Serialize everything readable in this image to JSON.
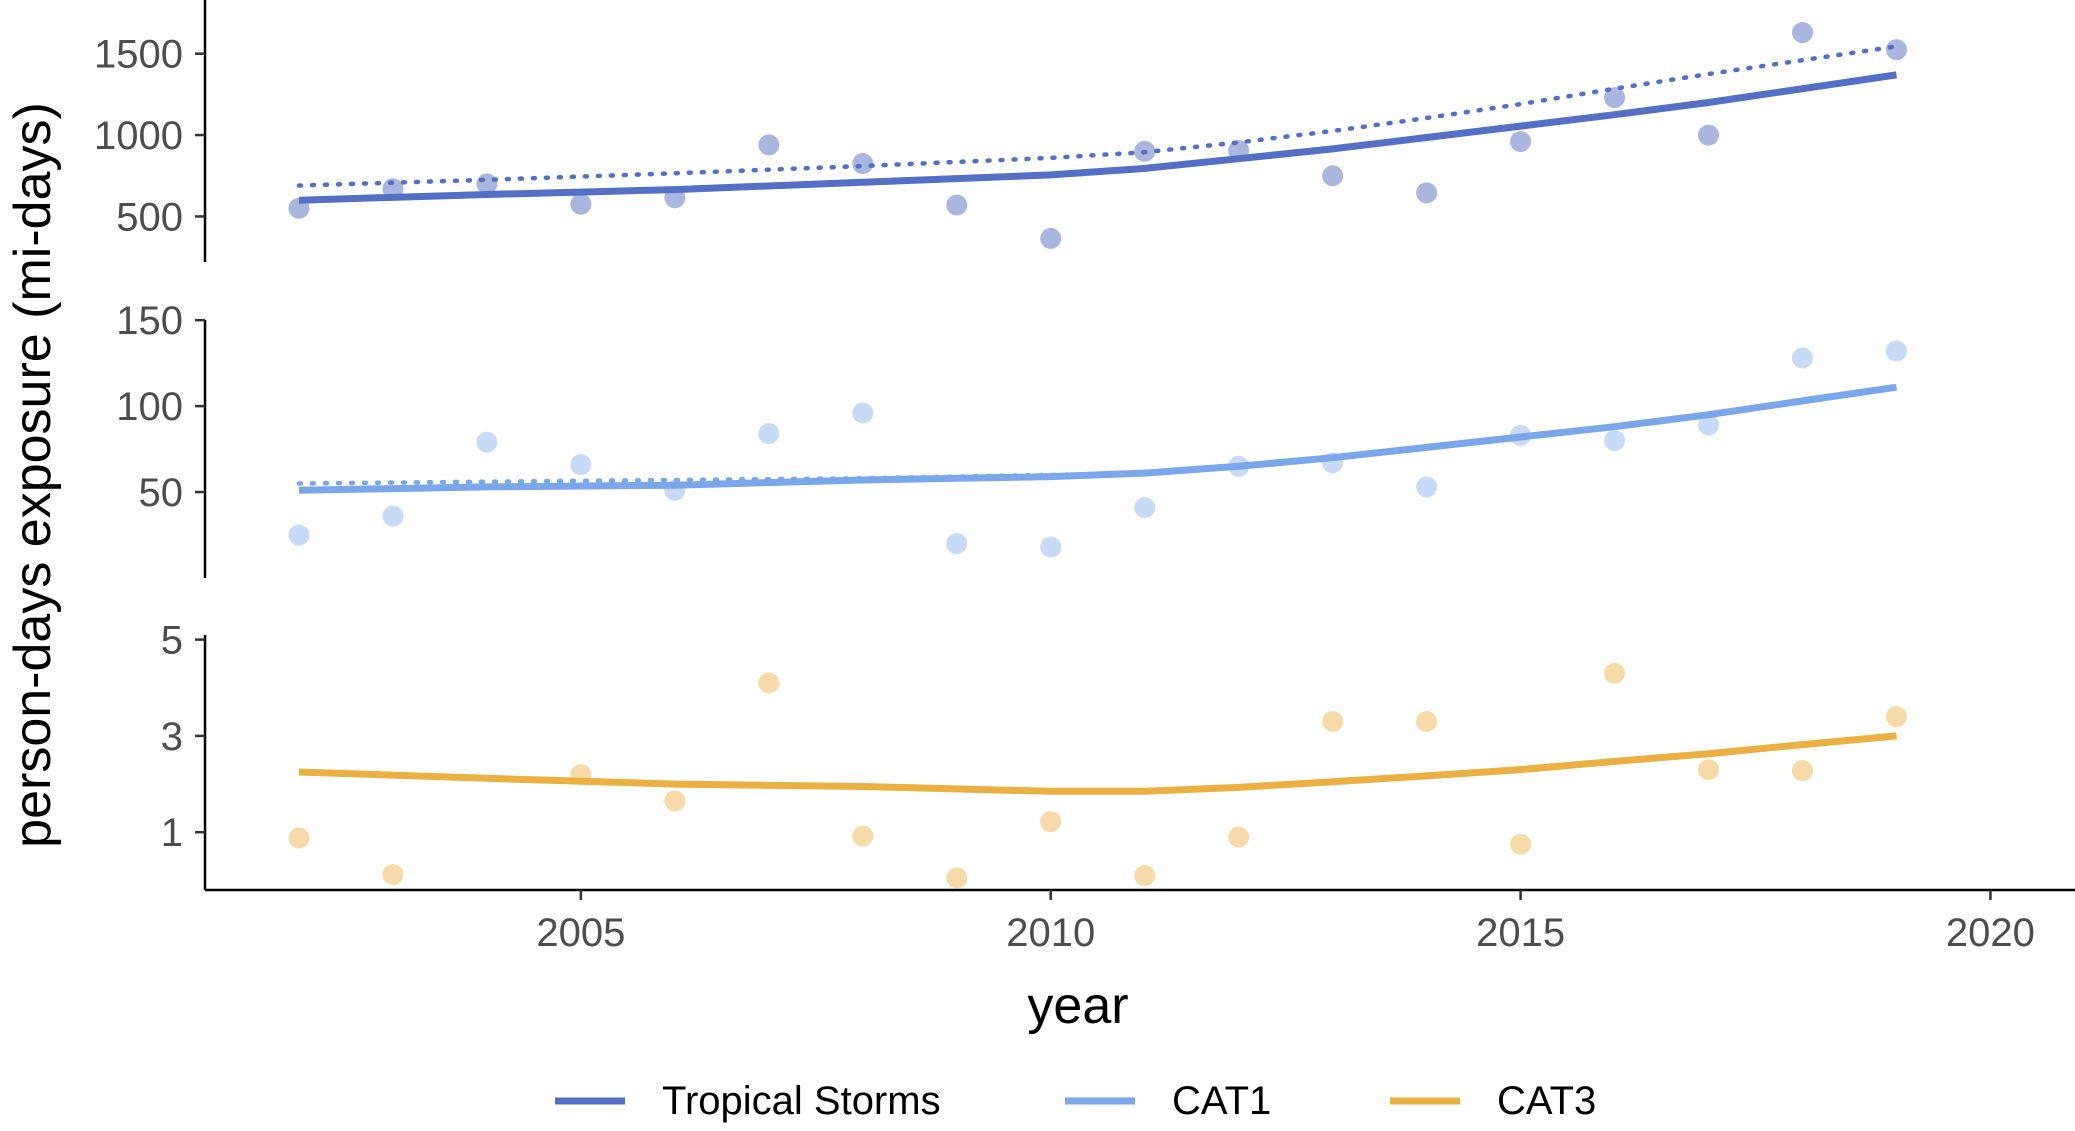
{
  "chart_data": {
    "type": "scatter",
    "xlabel": "year",
    "ylabel": "person-days exposure (mi-days)",
    "x_ticks": [
      2005,
      2010,
      2015,
      2020
    ],
    "xlim": [
      2001.0,
      2020.9
    ],
    "legend": {
      "position": "bottom",
      "entries": [
        {
          "name": "Tropical Storms",
          "color": "#5470c6"
        },
        {
          "name": "CAT1",
          "color": "#7aa6ea"
        },
        {
          "name": "CAT3",
          "color": "#ebb042"
        }
      ]
    },
    "panels": [
      {
        "series": "Tropical Storms",
        "line_color": "#5470c6",
        "point_color": "#a3b2de",
        "ylim": [
          220,
          1830
        ],
        "y_ticks": [
          500,
          1000,
          1500
        ],
        "points": [
          [
            2002,
            550
          ],
          [
            2003,
            670
          ],
          [
            2004,
            700
          ],
          [
            2005,
            575
          ],
          [
            2006,
            615
          ],
          [
            2007,
            940
          ],
          [
            2008,
            825
          ],
          [
            2009,
            570
          ],
          [
            2010,
            365
          ],
          [
            2011,
            900
          ],
          [
            2012,
            905
          ],
          [
            2013,
            750
          ],
          [
            2014,
            645
          ],
          [
            2015,
            960
          ],
          [
            2016,
            1230
          ],
          [
            2017,
            1000
          ],
          [
            2018,
            1630
          ],
          [
            2019,
            1525
          ]
        ],
        "trend_solid": [
          [
            2002,
            600
          ],
          [
            2004,
            635
          ],
          [
            2006,
            665
          ],
          [
            2008,
            710
          ],
          [
            2010,
            755
          ],
          [
            2011,
            795
          ],
          [
            2012,
            855
          ],
          [
            2013,
            915
          ],
          [
            2014,
            985
          ],
          [
            2015,
            1055
          ],
          [
            2016,
            1125
          ],
          [
            2017,
            1200
          ],
          [
            2018,
            1285
          ],
          [
            2019,
            1370
          ]
        ],
        "trend_dotted": [
          [
            2002,
            690
          ],
          [
            2004,
            725
          ],
          [
            2006,
            765
          ],
          [
            2008,
            810
          ],
          [
            2010,
            860
          ],
          [
            2011,
            895
          ],
          [
            2012,
            955
          ],
          [
            2013,
            1025
          ],
          [
            2014,
            1105
          ],
          [
            2015,
            1190
          ],
          [
            2016,
            1285
          ],
          [
            2017,
            1375
          ],
          [
            2018,
            1460
          ],
          [
            2019,
            1545
          ]
        ]
      },
      {
        "series": "CAT1",
        "line_color": "#7aa6ea",
        "point_color": "#c4d8f6",
        "ylim": [
          0,
          153
        ],
        "y_ticks": [
          50,
          100,
          150
        ],
        "points": [
          [
            2002,
            25
          ],
          [
            2003,
            36
          ],
          [
            2004,
            79
          ],
          [
            2005,
            66
          ],
          [
            2006,
            51
          ],
          [
            2007,
            84
          ],
          [
            2008,
            96
          ],
          [
            2009,
            20
          ],
          [
            2010,
            18
          ],
          [
            2011,
            41
          ],
          [
            2012,
            65
          ],
          [
            2013,
            67
          ],
          [
            2014,
            53
          ],
          [
            2015,
            83
          ],
          [
            2016,
            80
          ],
          [
            2017,
            89
          ],
          [
            2018,
            128
          ],
          [
            2019,
            132
          ]
        ],
        "trend_solid": [
          [
            2002,
            51
          ],
          [
            2004,
            53
          ],
          [
            2006,
            54
          ],
          [
            2008,
            57
          ],
          [
            2010,
            59
          ],
          [
            2011,
            61
          ],
          [
            2012,
            65
          ],
          [
            2013,
            70
          ],
          [
            2014,
            76
          ],
          [
            2015,
            82
          ],
          [
            2016,
            88
          ],
          [
            2017,
            95
          ],
          [
            2018,
            103
          ],
          [
            2019,
            111
          ]
        ],
        "trend_dotted": [
          [
            2002,
            55
          ],
          [
            2004,
            56
          ],
          [
            2006,
            57
          ],
          [
            2008,
            58
          ],
          [
            2010,
            60
          ],
          [
            2011,
            61
          ]
        ]
      },
      {
        "series": "CAT3",
        "line_color": "#ebb042",
        "point_color": "#f5d9a3",
        "ylim": [
          -0.2,
          5.2
        ],
        "y_ticks": [
          1,
          3,
          5
        ],
        "points": [
          [
            2002,
            0.88
          ],
          [
            2003,
            0.12
          ],
          [
            2004,
            null
          ],
          [
            2005,
            2.2
          ],
          [
            2006,
            1.65
          ],
          [
            2007,
            4.1
          ],
          [
            2008,
            0.92
          ],
          [
            2009,
            0.05
          ],
          [
            2010,
            1.22
          ],
          [
            2011,
            0.1
          ],
          [
            2012,
            0.9
          ],
          [
            2013,
            3.3
          ],
          [
            2014,
            3.3
          ],
          [
            2015,
            0.75
          ],
          [
            2016,
            4.3
          ],
          [
            2017,
            2.3
          ],
          [
            2018,
            2.28
          ],
          [
            2019,
            3.4
          ]
        ],
        "trend_solid": [
          [
            2002,
            2.25
          ],
          [
            2004,
            2.12
          ],
          [
            2006,
            2.0
          ],
          [
            2008,
            1.95
          ],
          [
            2010,
            1.85
          ],
          [
            2011,
            1.85
          ],
          [
            2012,
            1.93
          ],
          [
            2013,
            2.05
          ],
          [
            2014,
            2.17
          ],
          [
            2015,
            2.3
          ],
          [
            2016,
            2.47
          ],
          [
            2017,
            2.63
          ],
          [
            2018,
            2.82
          ],
          [
            2019,
            3.0
          ]
        ],
        "trend_dotted": []
      }
    ]
  }
}
